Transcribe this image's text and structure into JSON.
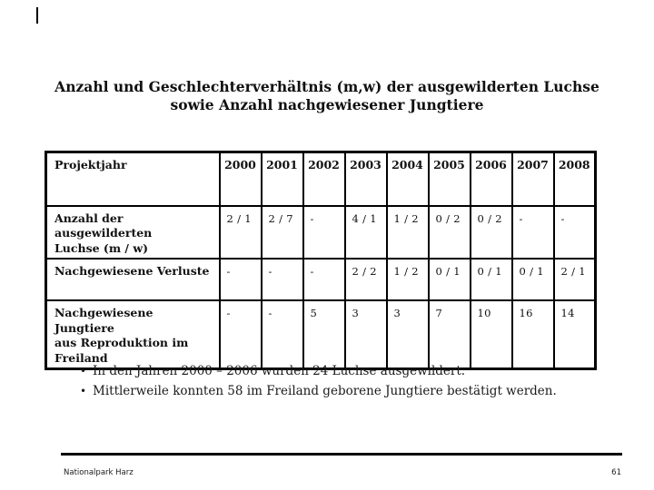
{
  "slide": {
    "title": "Anzahl und Geschlechterverhältnis (m,w) der ausgewilderten Luchse\nsowie Anzahl nachgewiesener Jungtiere"
  },
  "table": {
    "header": [
      "Projektjahr",
      "2000",
      "2001",
      "2002",
      "2003",
      "2004",
      "2005",
      "2006",
      "2007",
      "2008"
    ],
    "rows": [
      {
        "label": "Anzahl der ausgewilderten\nLuchse (m / w)",
        "values": [
          "2 / 1",
          "2 / 7",
          "-",
          "4 / 1",
          "1 / 2",
          "0 / 2",
          "0 / 2",
          "-",
          "-"
        ]
      },
      {
        "label": "Nachgewiesene Verluste",
        "values": [
          "-",
          "-",
          "-",
          "2 / 2",
          "1 / 2",
          "0 / 1",
          "0 / 1",
          "0 / 1",
          "2 / 1"
        ]
      },
      {
        "label": "Nachgewiesene Jungtiere\naus Reproduktion im\nFreiland",
        "values": [
          "-",
          "-",
          "5",
          "3",
          "3",
          "7",
          "10",
          "16",
          "14"
        ]
      }
    ]
  },
  "bullets": {
    "glyph": "•",
    "items": [
      "In den Jahren 2000 – 2006 wurden 24 Luchse ausgewildert.",
      "Mittlerweile konnten 58 im Freiland geborene Jungtiere bestätigt werden."
    ]
  },
  "footer": {
    "left": "Nationalpark Harz",
    "page_number": "61"
  },
  "colors": {
    "background": "#ffffff",
    "text": "#111111",
    "border": "#000000"
  }
}
